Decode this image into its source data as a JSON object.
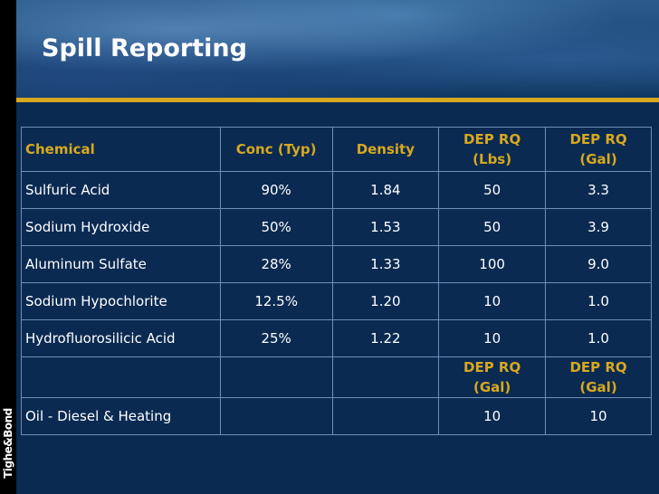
{
  "title": "Spill Reporting",
  "logo": "Tighe&Bond",
  "table": {
    "headers": [
      "Chemical",
      "Conc (Typ)",
      "Density",
      "DEP RQ\n(Lbs)",
      "DEP RQ\n(Gal)"
    ],
    "header_lines": {
      "h4_line1": "DEP RQ",
      "h4_line2": "(Lbs)",
      "h5_line1": "DEP RQ",
      "h5_line2": "(Gal)"
    },
    "rows": [
      {
        "chemical": "Sulfuric Acid",
        "conc": "90%",
        "density": "1.84",
        "rq_lbs": "50",
        "rq_gal": "3.3"
      },
      {
        "chemical": "Sodium Hydroxide",
        "conc": "50%",
        "density": "1.53",
        "rq_lbs": "50",
        "rq_gal": "3.9"
      },
      {
        "chemical": "Aluminum Sulfate",
        "conc": "28%",
        "density": "1.33",
        "rq_lbs": "100",
        "rq_gal": "9.0"
      },
      {
        "chemical": "Sodium Hypochlorite",
        "conc": "12.5%",
        "density": "1.20",
        "rq_lbs": "10",
        "rq_gal": "1.0"
      },
      {
        "chemical": "Hydrofluorosilicic Acid",
        "conc": "25%",
        "density": "1.22",
        "rq_lbs": "10",
        "rq_gal": "1.0"
      }
    ],
    "sub_header": {
      "h4_line1": "DEP RQ",
      "h4_line2": "(Gal)",
      "h5_line1": "DEP RQ",
      "h5_line2": "(Gal)"
    },
    "oil_row": {
      "chemical": "Oil - Diesel & Heating",
      "rq_4": "10",
      "rq_5": "10"
    }
  },
  "colors": {
    "accent_gold": "#d8a81f",
    "background_navy": "#0a2a52",
    "text": "#ffffff"
  }
}
